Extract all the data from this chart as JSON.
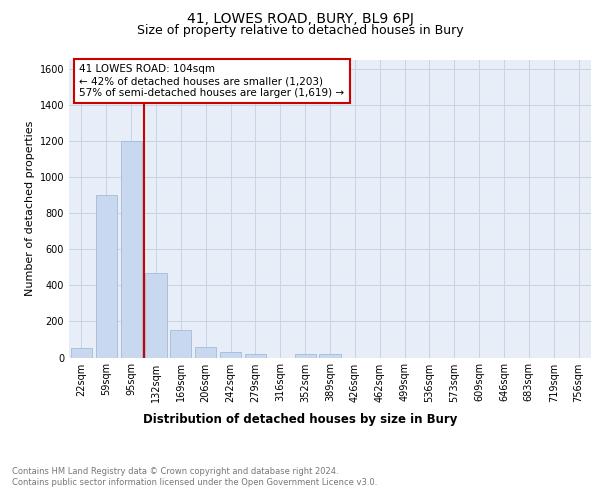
{
  "title": "41, LOWES ROAD, BURY, BL9 6PJ",
  "subtitle": "Size of property relative to detached houses in Bury",
  "xlabel": "Distribution of detached houses by size in Bury",
  "ylabel": "Number of detached properties",
  "categories": [
    "22sqm",
    "59sqm",
    "95sqm",
    "132sqm",
    "169sqm",
    "206sqm",
    "242sqm",
    "279sqm",
    "316sqm",
    "352sqm",
    "389sqm",
    "426sqm",
    "462sqm",
    "499sqm",
    "536sqm",
    "573sqm",
    "609sqm",
    "646sqm",
    "683sqm",
    "719sqm",
    "756sqm"
  ],
  "values": [
    55,
    900,
    1200,
    470,
    150,
    58,
    28,
    20,
    0,
    20,
    20,
    0,
    0,
    0,
    0,
    0,
    0,
    0,
    0,
    0,
    0
  ],
  "bar_color": "#c8d8ee",
  "bar_edge_color": "#9ab4d4",
  "vline_x": 2.5,
  "vline_color": "#cc0000",
  "annotation_box_text": "41 LOWES ROAD: 104sqm\n← 42% of detached houses are smaller (1,203)\n57% of semi-detached houses are larger (1,619) →",
  "annotation_box_color": "#cc0000",
  "annotation_box_bg": "#ffffff",
  "ylim": [
    0,
    1650
  ],
  "yticks": [
    0,
    200,
    400,
    600,
    800,
    1000,
    1200,
    1400,
    1600
  ],
  "grid_color": "#c8d4e4",
  "bg_color": "#e8eef8",
  "footnote": "Contains HM Land Registry data © Crown copyright and database right 2024.\nContains public sector information licensed under the Open Government Licence v3.0.",
  "title_fontsize": 10,
  "subtitle_fontsize": 9,
  "xlabel_fontsize": 8.5,
  "ylabel_fontsize": 8,
  "tick_fontsize": 7,
  "footnote_fontsize": 6,
  "annot_fontsize": 7.5
}
